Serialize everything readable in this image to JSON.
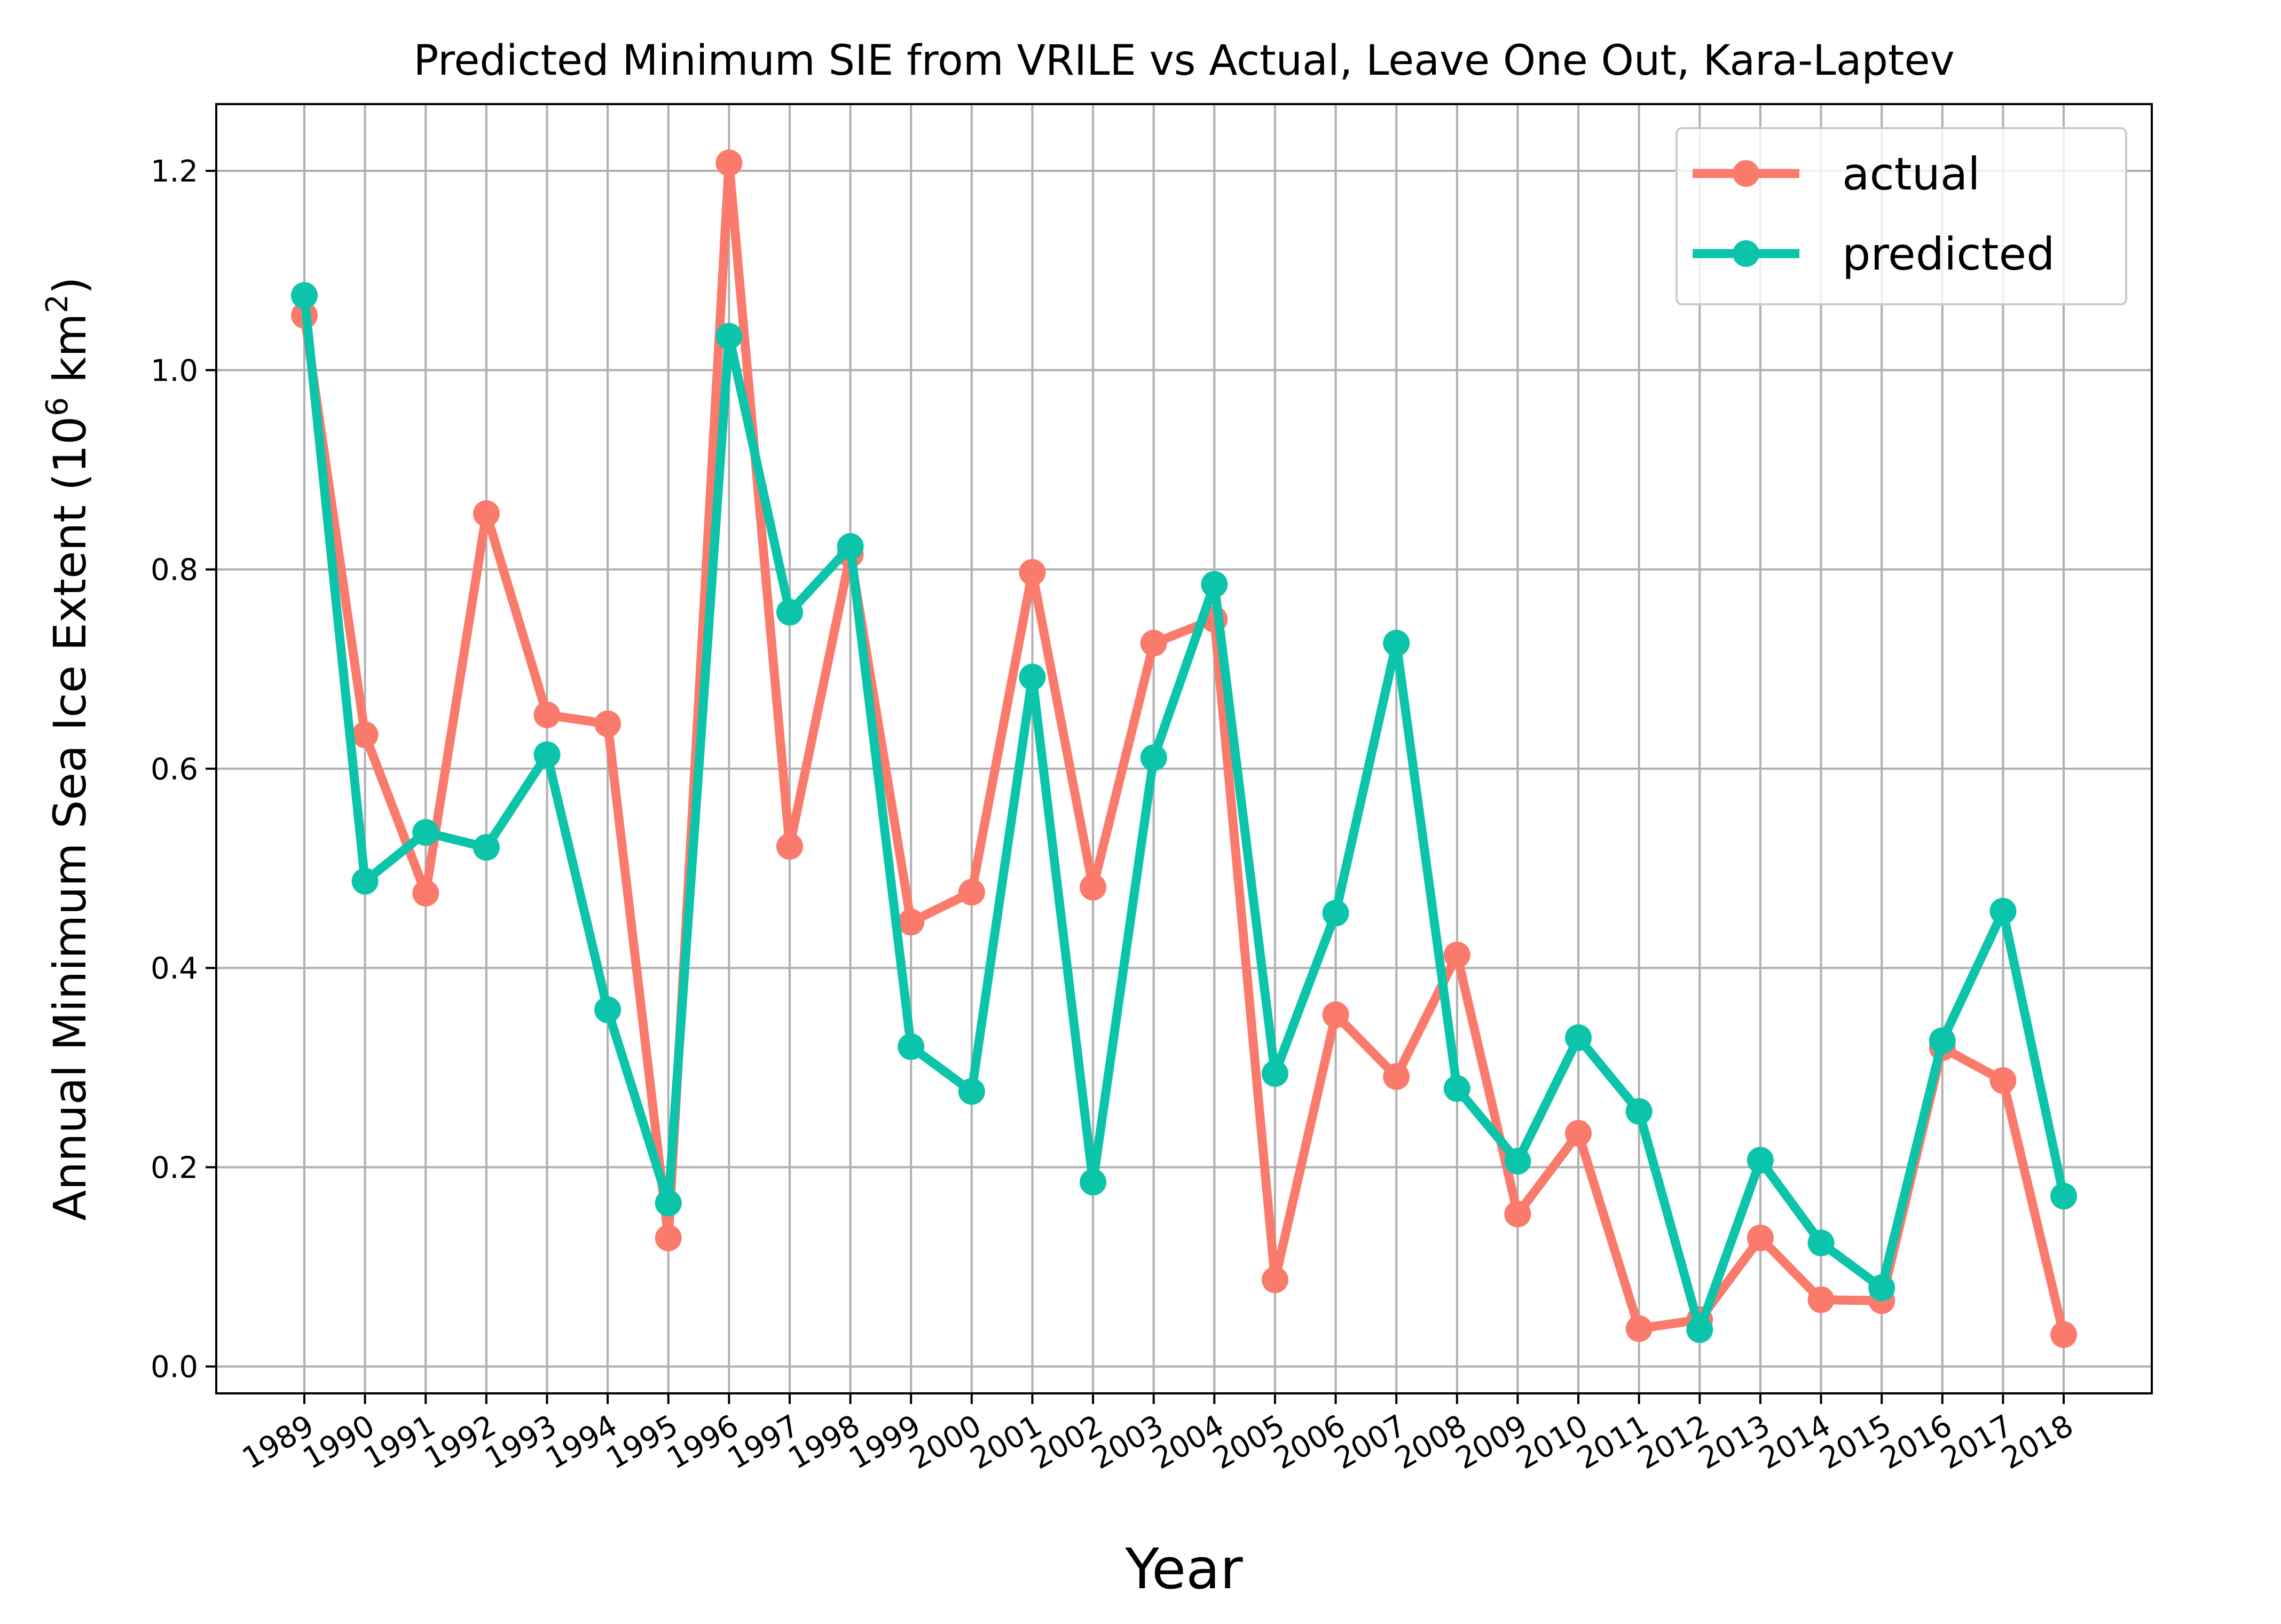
{
  "chart_data": {
    "type": "line",
    "title": "Predicted Minimum SIE from VRILE vs Actual, Leave One Out, Kara-Laptev",
    "xlabel": "Year",
    "ylabel": "Annual Minimum Sea Ice Extent (10",
    "ylabel_sup1": "6",
    "ylabel_mid": " km",
    "ylabel_sup2": "2",
    "ylabel_end": ")",
    "x": [
      1989,
      1990,
      1991,
      1992,
      1993,
      1994,
      1995,
      1996,
      1997,
      1998,
      1999,
      2000,
      2001,
      2002,
      2003,
      2004,
      2005,
      2006,
      2007,
      2008,
      2009,
      2010,
      2011,
      2012,
      2013,
      2014,
      2015,
      2016,
      2017,
      2018
    ],
    "x_tick_labels": [
      "1989",
      "1990",
      "1991",
      "1992",
      "1993",
      "1994",
      "1995",
      "1996",
      "1997",
      "1998",
      "1999",
      "2000",
      "2001",
      "2002",
      "2003",
      "2004",
      "2005",
      "2006",
      "2007",
      "2008",
      "2009",
      "2010",
      "2011",
      "2012",
      "2013",
      "2014",
      "2015",
      "2016",
      "2017",
      "2018"
    ],
    "y_ticks": [
      0.0,
      0.2,
      0.4,
      0.6,
      0.8,
      1.0,
      1.2
    ],
    "y_tick_labels": [
      "0.0",
      "0.2",
      "0.4",
      "0.6",
      "0.8",
      "1.0",
      "1.2"
    ],
    "ylim": [
      -0.027,
      1.267
    ],
    "grid": true,
    "legend_position": "top-right",
    "series": [
      {
        "name": "actual",
        "color": "#fa7a6c",
        "values": [
          1.055,
          0.634,
          0.475,
          0.856,
          0.654,
          0.645,
          0.129,
          1.208,
          0.522,
          0.815,
          0.446,
          0.476,
          0.797,
          0.481,
          0.726,
          0.75,
          0.087,
          0.353,
          0.291,
          0.413,
          0.153,
          0.234,
          0.038,
          0.047,
          0.129,
          0.067,
          0.066,
          0.32,
          0.287,
          0.032
        ]
      },
      {
        "name": "predicted",
        "color": "#0cc4aa",
        "values": [
          1.075,
          0.487,
          0.536,
          0.521,
          0.614,
          0.358,
          0.164,
          1.034,
          0.757,
          0.823,
          0.321,
          0.276,
          0.692,
          0.185,
          0.611,
          0.785,
          0.294,
          0.455,
          0.726,
          0.279,
          0.206,
          0.33,
          0.256,
          0.037,
          0.207,
          0.124,
          0.079,
          0.327,
          0.457,
          0.171
        ]
      }
    ]
  }
}
